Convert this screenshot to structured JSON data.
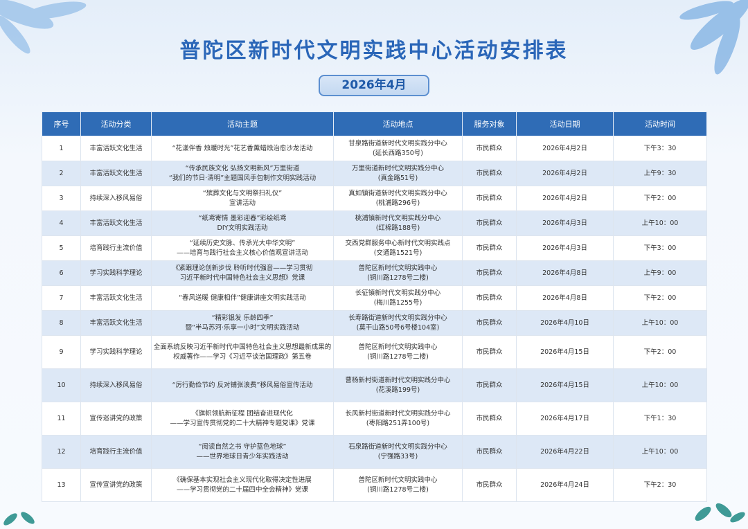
{
  "title": "普陀区新时代文明实践中心活动安排表",
  "month": "2026年4月",
  "headers": [
    "序号",
    "活动分类",
    "活动主题",
    "活动地点",
    "服务对象",
    "活动日期",
    "活动时间"
  ],
  "rows": [
    {
      "no": "1",
      "category": "丰富活跃文化生活",
      "theme": [
        "“花漾伴香 烛暖时光”花艺香薰蜡烛治愈沙龙活动"
      ],
      "place": [
        "甘泉路街道新时代文明实践分中心",
        "(延长西路350号)"
      ],
      "target": "市民群众",
      "date": "2026年4月2日",
      "time": "下午3：30"
    },
    {
      "no": "2",
      "category": "丰富活跃文化生活",
      "theme": [
        "“传承民族文化 弘扬文明新风”万里街道",
        "“我们的节日·清明”主题国风手包制作文明实践活动"
      ],
      "place": [
        "万里街道新时代文明实践分中心",
        "(真金路51号)"
      ],
      "target": "市民群众",
      "date": "2026年4月2日",
      "time": "上午9：30"
    },
    {
      "no": "3",
      "category": "持续深入移风易俗",
      "theme": [
        "“殡葬文化与文明祭扫礼仪”",
        "宣讲活动"
      ],
      "place": [
        "真如镇街道新时代文明实践分中心",
        "(桃浦路296号)"
      ],
      "target": "市民群众",
      "date": "2026年4月2日",
      "time": "下午2：00"
    },
    {
      "no": "4",
      "category": "丰富活跃文化生活",
      "theme": [
        "“纸鸢寄情 墨彩迎春”彩绘纸鸢",
        "DIY文明实践活动"
      ],
      "place": [
        "桃浦镇新时代文明实践分中心",
        "(红棉路188号)"
      ],
      "target": "市民群众",
      "date": "2026年4月3日",
      "time": "上午10：00"
    },
    {
      "no": "5",
      "category": "培育践行主流价值",
      "theme": [
        "“延续历史文脉、传承光大中华文明”",
        "——培育与践行社会主义核心价值观宣讲活动"
      ],
      "place": [
        "交西党群服务中心新时代文明实践点",
        "(交通路1521号)"
      ],
      "target": "市民群众",
      "date": "2026年4月3日",
      "time": "下午3：00"
    },
    {
      "no": "6",
      "category": "学习实践科学理论",
      "theme": [
        "《紧跟理论创新步伐 聆听时代强音——学习贯彻",
        "习近平新时代中国特色社会主义思想》党课"
      ],
      "place": [
        "普陀区新时代文明实践中心",
        "(铜川路1278号二楼)"
      ],
      "target": "市民群众",
      "date": "2026年4月8日",
      "time": "上午9：00"
    },
    {
      "no": "7",
      "category": "丰富活跃文化生活",
      "theme": [
        "“春风送暖 健康相伴”健康讲座文明实践活动"
      ],
      "place": [
        "长征镇新时代文明实践分中心",
        "(梅川路1255号)"
      ],
      "target": "市民群众",
      "date": "2026年4月8日",
      "time": "下午2：00"
    },
    {
      "no": "8",
      "category": "丰富活跃文化生活",
      "theme": [
        "“精彩银发 乐龄四季”",
        "暨“半马苏河·乐享一小时”文明实践活动"
      ],
      "place": [
        "长寿路街道新时代文明实践分中心",
        "(莫干山路50号6号楼104室)"
      ],
      "target": "市民群众",
      "date": "2026年4月10日",
      "time": "上午10：00"
    },
    {
      "no": "9",
      "category": "学习实践科学理论",
      "theme": [
        "全面系统反映习近平新时代中国特色社会主义思想最新成果的",
        "权威著作——学习《习近平谈治国理政》第五卷"
      ],
      "place": [
        "普陀区新时代文明实践中心",
        "(铜川路1278号二楼)"
      ],
      "target": "市民群众",
      "date": "2026年4月15日",
      "time": "下午2：00"
    },
    {
      "no": "10",
      "category": "持续深入移风易俗",
      "theme": [
        "“厉行勤俭节约 反对铺张浪费”移风易俗宣传活动"
      ],
      "place": [
        "曹杨新村街道新时代文明实践分中心",
        "(花溪路199号)"
      ],
      "target": "市民群众",
      "date": "2026年4月15日",
      "time": "上午10：00"
    },
    {
      "no": "11",
      "category": "宣传巡讲党的政策",
      "theme": [
        "《旗帜领航新征程 团结奋进现代化",
        "——学习宣传贯彻党的二十大精神专题党课》党课"
      ],
      "place": [
        "长风新村街道新时代文明实践分中心",
        "(枣阳路251弄100号)"
      ],
      "target": "市民群众",
      "date": "2026年4月17日",
      "time": "下午1：30"
    },
    {
      "no": "12",
      "category": "培育践行主流价值",
      "theme": [
        "“阅读自然之书 守护蓝色地球”",
        "——世界地球日青少年实践活动"
      ],
      "place": [
        "石泉路街道新时代文明实践分中心",
        "(宁强路33号)"
      ],
      "target": "市民群众",
      "date": "2026年4月22日",
      "time": "上午10：00"
    },
    {
      "no": "13",
      "category": "宣传宣讲党的政策",
      "theme": [
        "《确保基本实现社会主义现代化取得决定性进展",
        "——学习贯彻党的二十届四中全会精神》党课"
      ],
      "place": [
        "普陀区新时代文明实践中心",
        "(铜川路1278号二楼)"
      ],
      "target": "市民群众",
      "date": "2026年4月24日",
      "time": "下午2：30"
    }
  ],
  "colors": {
    "header": "#2f6cb6",
    "title": "#2a66b8",
    "alt_row": "#dde8f6"
  }
}
